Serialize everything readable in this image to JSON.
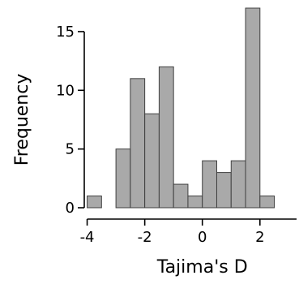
{
  "chart_data": {
    "type": "bar",
    "xlabel": "Tajima's D",
    "ylabel": "Frequency",
    "bin_width": 0.5,
    "bins": [
      {
        "start": -4.0,
        "end": -3.5,
        "count": 1
      },
      {
        "start": -3.5,
        "end": -3.0,
        "count": 0
      },
      {
        "start": -3.0,
        "end": -2.5,
        "count": 5
      },
      {
        "start": -2.5,
        "end": -2.0,
        "count": 11
      },
      {
        "start": -2.0,
        "end": -1.5,
        "count": 8
      },
      {
        "start": -1.5,
        "end": -1.0,
        "count": 12
      },
      {
        "start": -1.0,
        "end": -0.5,
        "count": 2
      },
      {
        "start": -0.5,
        "end": 0.0,
        "count": 1
      },
      {
        "start": 0.0,
        "end": 0.5,
        "count": 4
      },
      {
        "start": 0.5,
        "end": 1.0,
        "count": 3
      },
      {
        "start": 1.0,
        "end": 1.5,
        "count": 4
      },
      {
        "start": 1.5,
        "end": 2.0,
        "count": 17
      },
      {
        "start": 2.0,
        "end": 2.5,
        "count": 1
      }
    ],
    "xlim": [
      -4.1,
      3.3
    ],
    "ylim": [
      0,
      17
    ],
    "xticks": [
      -4,
      -2,
      0,
      2
    ],
    "xtick_labels": [
      "-4",
      "-2",
      "0",
      "2"
    ],
    "yticks": [
      0,
      5,
      10,
      15
    ],
    "ytick_labels": [
      "0",
      "5",
      "10",
      "15"
    ],
    "grid": false,
    "bar_color": "#a9a9a9",
    "edge_color": "#404040"
  }
}
